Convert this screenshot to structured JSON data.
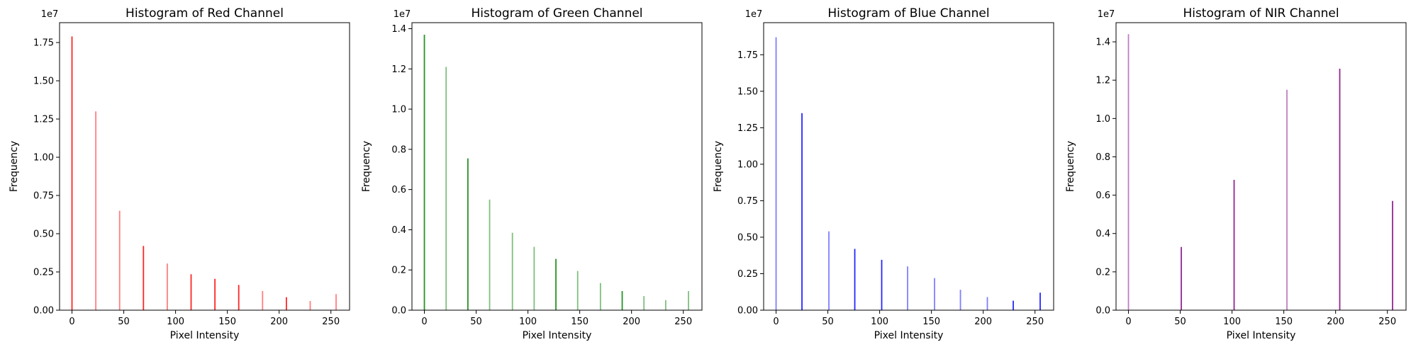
{
  "figure": {
    "chart_data": [
      {
        "type": "bar",
        "title": "Histogram of Red Channel",
        "xlabel": "Pixel Intensity",
        "ylabel": "Frequency",
        "y_offset_label": "1e7",
        "color": "#ff0000",
        "xlim": [
          -12,
          268
        ],
        "ylim": [
          0,
          18800000
        ],
        "xticks": [
          0,
          50,
          100,
          150,
          200,
          250
        ],
        "yticks": [
          0,
          2500000,
          5000000,
          7500000,
          10000000,
          12500000,
          15000000,
          17500000
        ],
        "ytick_labels": [
          "0.00",
          "0.25",
          "0.50",
          "0.75",
          "1.00",
          "1.25",
          "1.50",
          "1.75"
        ],
        "bars": [
          {
            "x": 0,
            "value": 17900000,
            "opaque": true
          },
          {
            "x": 23,
            "value": 13000000,
            "opaque": false
          },
          {
            "x": 46,
            "value": 6500000,
            "opaque": false
          },
          {
            "x": 69,
            "value": 4200000,
            "opaque": true
          },
          {
            "x": 92,
            "value": 3050000,
            "opaque": false
          },
          {
            "x": 115,
            "value": 2350000,
            "opaque": true
          },
          {
            "x": 138,
            "value": 2050000,
            "opaque": true
          },
          {
            "x": 161,
            "value": 1650000,
            "opaque": true
          },
          {
            "x": 184,
            "value": 1250000,
            "opaque": false
          },
          {
            "x": 207,
            "value": 850000,
            "opaque": true
          },
          {
            "x": 230,
            "value": 600000,
            "opaque": false
          },
          {
            "x": 255,
            "value": 1050000,
            "opaque": false
          }
        ]
      },
      {
        "type": "bar",
        "title": "Histogram of Green Channel",
        "xlabel": "Pixel Intensity",
        "ylabel": "Frequency",
        "y_offset_label": "1e7",
        "color": "#008000",
        "xlim": [
          -12,
          268
        ],
        "ylim": [
          0,
          14300000
        ],
        "xticks": [
          0,
          50,
          100,
          150,
          200,
          250
        ],
        "yticks": [
          0,
          2000000,
          4000000,
          6000000,
          8000000,
          10000000,
          12000000,
          14000000
        ],
        "ytick_labels": [
          "0.0",
          "0.2",
          "0.4",
          "0.6",
          "0.8",
          "1.0",
          "1.2",
          "1.4"
        ],
        "bars": [
          {
            "x": 0,
            "value": 13700000,
            "opaque": true
          },
          {
            "x": 21,
            "value": 12100000,
            "opaque": false
          },
          {
            "x": 42,
            "value": 7550000,
            "opaque": true
          },
          {
            "x": 63,
            "value": 5500000,
            "opaque": false
          },
          {
            "x": 85,
            "value": 3850000,
            "opaque": false
          },
          {
            "x": 106,
            "value": 3150000,
            "opaque": false
          },
          {
            "x": 127,
            "value": 2550000,
            "opaque": true
          },
          {
            "x": 148,
            "value": 1950000,
            "opaque": false
          },
          {
            "x": 170,
            "value": 1350000,
            "opaque": false
          },
          {
            "x": 191,
            "value": 950000,
            "opaque": true
          },
          {
            "x": 212,
            "value": 700000,
            "opaque": false
          },
          {
            "x": 233,
            "value": 500000,
            "opaque": false
          },
          {
            "x": 255,
            "value": 950000,
            "opaque": false
          }
        ]
      },
      {
        "type": "bar",
        "title": "Histogram of Blue Channel",
        "xlabel": "Pixel Intensity",
        "ylabel": "Frequency",
        "y_offset_label": "1e7",
        "color": "#0000ff",
        "xlim": [
          -12,
          268
        ],
        "ylim": [
          0,
          19700000
        ],
        "xticks": [
          0,
          50,
          100,
          150,
          200,
          250
        ],
        "yticks": [
          0,
          2500000,
          5000000,
          7500000,
          10000000,
          12500000,
          15000000,
          17500000
        ],
        "ytick_labels": [
          "0.00",
          "0.25",
          "0.50",
          "0.75",
          "1.00",
          "1.25",
          "1.50",
          "1.75"
        ],
        "bars": [
          {
            "x": 0,
            "value": 18700000,
            "opaque": false
          },
          {
            "x": 25,
            "value": 13500000,
            "opaque": true
          },
          {
            "x": 51,
            "value": 5400000,
            "opaque": false
          },
          {
            "x": 76,
            "value": 4200000,
            "opaque": true
          },
          {
            "x": 102,
            "value": 3450000,
            "opaque": true
          },
          {
            "x": 127,
            "value": 3000000,
            "opaque": false
          },
          {
            "x": 153,
            "value": 2200000,
            "opaque": false
          },
          {
            "x": 178,
            "value": 1400000,
            "opaque": false
          },
          {
            "x": 204,
            "value": 900000,
            "opaque": false
          },
          {
            "x": 229,
            "value": 650000,
            "opaque": true
          },
          {
            "x": 255,
            "value": 1200000,
            "opaque": true
          }
        ]
      },
      {
        "type": "bar",
        "title": "Histogram of NIR Channel",
        "xlabel": "Pixel Intensity",
        "ylabel": "Frequency",
        "y_offset_label": "1e7",
        "color": "#800080",
        "xlim": [
          -12,
          268
        ],
        "ylim": [
          0,
          15000000
        ],
        "xticks": [
          0,
          50,
          100,
          150,
          200,
          250
        ],
        "yticks": [
          0,
          2000000,
          4000000,
          6000000,
          8000000,
          10000000,
          12000000,
          14000000
        ],
        "ytick_labels": [
          "0.0",
          "0.2",
          "0.4",
          "0.6",
          "0.8",
          "1.0",
          "1.2",
          "1.4"
        ],
        "bars": [
          {
            "x": 0,
            "value": 14400000,
            "opaque": false
          },
          {
            "x": 51,
            "value": 3300000,
            "opaque": true
          },
          {
            "x": 102,
            "value": 6800000,
            "opaque": true
          },
          {
            "x": 153,
            "value": 11500000,
            "opaque": false
          },
          {
            "x": 204,
            "value": 12600000,
            "opaque": true
          },
          {
            "x": 255,
            "value": 5700000,
            "opaque": true
          }
        ]
      }
    ]
  }
}
